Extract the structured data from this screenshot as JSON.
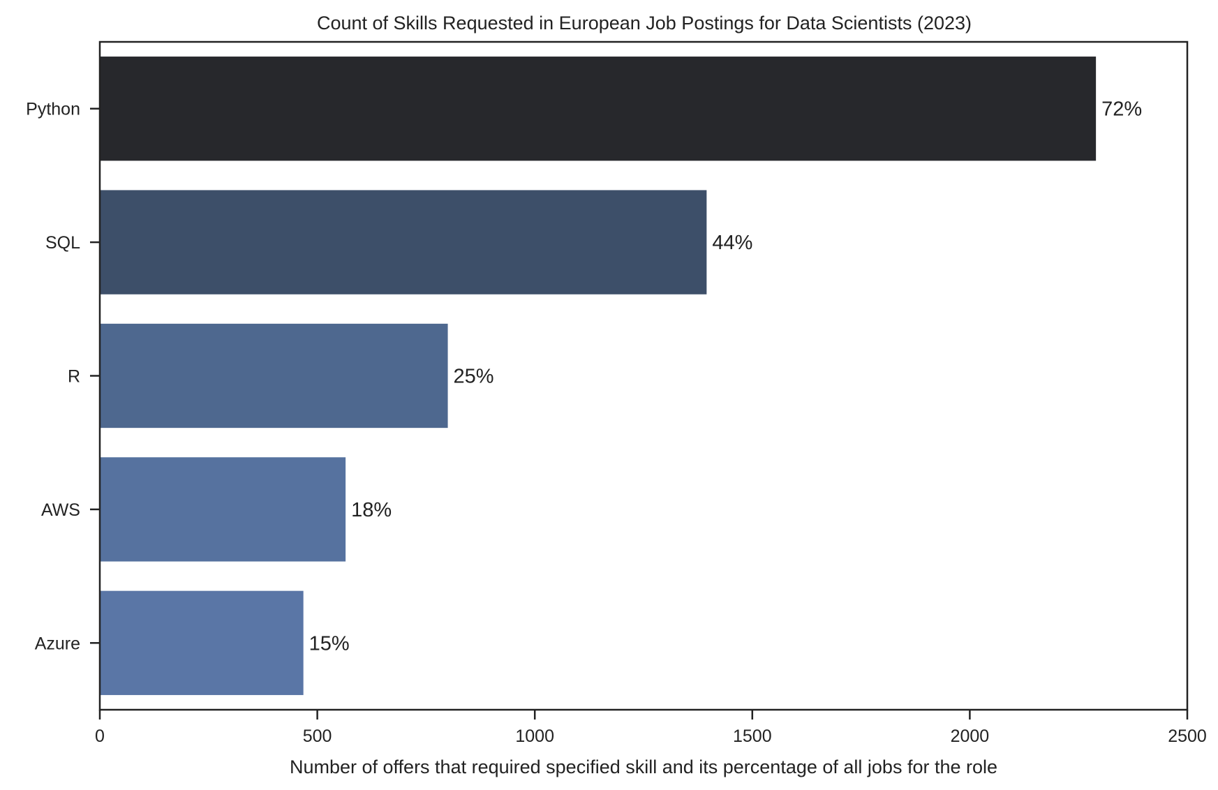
{
  "chart_data": {
    "type": "bar",
    "orientation": "horizontal",
    "title": "Count of Skills Requested in European Job Postings for Data Scientists (2023)",
    "xlabel": "Number of offers that required specified skill and its percentage of all jobs for the role",
    "ylabel": "",
    "xlim": [
      0,
      2500
    ],
    "xticks": [
      0,
      500,
      1000,
      1500,
      2000,
      2500
    ],
    "xtick_labels": [
      "0",
      "500",
      "1000",
      "1500",
      "2000",
      "2500"
    ],
    "categories": [
      "Python",
      "SQL",
      "R",
      "AWS",
      "Azure"
    ],
    "values": [
      2290,
      1395,
      800,
      565,
      468
    ],
    "data_labels": [
      "72%",
      "44%",
      "25%",
      "18%",
      "15%"
    ],
    "colors": [
      "#27282c",
      "#3d4f69",
      "#4e688f",
      "#56729f",
      "#5a76a6"
    ],
    "grid": false
  }
}
